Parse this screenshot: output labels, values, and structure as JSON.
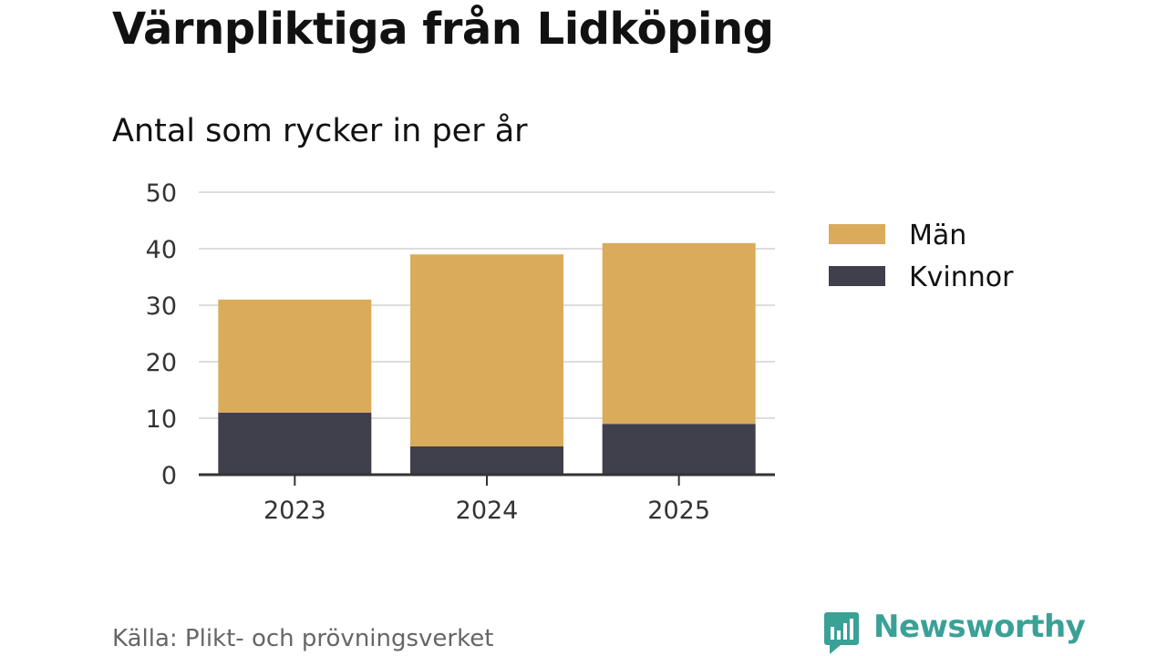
{
  "title": "Värnpliktiga från Lidköping",
  "subtitle": "Antal som rycker in per år",
  "source": "Källa: Plikt- och prövningsverket",
  "brand": "Newsworthy",
  "colors": {
    "man": "#d9ab5b",
    "kvinnor": "#403f4c",
    "grid": "#dddddd",
    "axis": "#333333",
    "brand": "#3aa197"
  },
  "chart_data": {
    "type": "bar",
    "stacked": true,
    "categories": [
      "2023",
      "2024",
      "2025"
    ],
    "series": [
      {
        "name": "Kvinnor",
        "values": [
          11,
          5,
          9
        ]
      },
      {
        "name": "Män",
        "values": [
          20,
          34,
          32
        ]
      }
    ],
    "legend": [
      "Män",
      "Kvinnor"
    ],
    "legend_position": "right",
    "ylim": [
      0,
      50
    ],
    "yticks": [
      "0",
      "10",
      "20",
      "30",
      "40",
      "50"
    ],
    "xlabel": "",
    "ylabel": "",
    "grid": true
  }
}
